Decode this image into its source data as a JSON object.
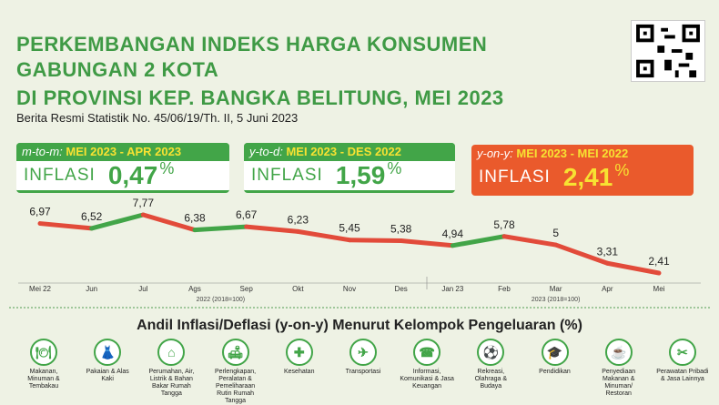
{
  "title_lines": [
    "PERKEMBANGAN INDEKS HARGA KONSUMEN",
    "GABUNGAN 2 KOTA",
    "DI PROVINSI KEP. BANGKA BELITUNG, MEI 2023"
  ],
  "subtitle": "Berita Resmi Statistik No. 45/06/19/Th. II, 5 Juni 2023",
  "boxes": [
    {
      "prefix": "m-to-m:",
      "period": "MEI 2023 - APR 2023",
      "label": "INFLASI",
      "value": "0,47",
      "unit": "%"
    },
    {
      "prefix": "y-to-d:",
      "period": "MEI 2023 - DES 2022",
      "label": "INFLASI",
      "value": "1,59",
      "unit": "%"
    },
    {
      "prefix": "y-on-y:",
      "period": "MEI 2023 - MEI 2022",
      "label": "INFLASI",
      "value": "2,41",
      "unit": "%"
    }
  ],
  "colors": {
    "green": "#42a548",
    "red": "#e24b3a",
    "accent_yellow": "#f7e232",
    "orange": "#ea5a2c"
  },
  "chart_data": {
    "type": "line",
    "categories": [
      "Mei 22",
      "Jun",
      "Jul",
      "Ags",
      "Sep",
      "Okt",
      "Nov",
      "Des",
      "Jan 23",
      "Feb",
      "Mar",
      "Apr",
      "Mei"
    ],
    "values": [
      6.97,
      6.52,
      7.77,
      6.38,
      6.67,
      6.23,
      5.45,
      5.38,
      4.94,
      5.78,
      5,
      3.31,
      2.41
    ],
    "value_labels": [
      "6,97",
      "6,52",
      "7,77",
      "6,38",
      "6,67",
      "6,23",
      "5,45",
      "5,38",
      "4,94",
      "5,78",
      "5",
      "3,31",
      "2,41"
    ],
    "base_labels": [
      "2022 (2018=100)",
      "2023 (2018=100)"
    ],
    "segment_colors_note": "green when rising, red when falling",
    "grid": false
  },
  "section_title": "Andil Inflasi/Deflasi (y-on-y) Menurut Kelompok Pengeluaran (%)",
  "categories": [
    {
      "icon": "food-icon",
      "glyph": "🍽",
      "label": "Makanan, Minuman & Tembakau"
    },
    {
      "icon": "clothing-icon",
      "glyph": "👗",
      "label": "Pakaian & Alas Kaki"
    },
    {
      "icon": "house-icon",
      "glyph": "⌂",
      "label": "Perumahan, Air, Listrik & Bahan Bakar Rumah Tangga"
    },
    {
      "icon": "furniture-icon",
      "glyph": "🛋",
      "label": "Perlengkapan, Peralatan & Pemeliharaan Rutin Rumah Tangga"
    },
    {
      "icon": "health-icon",
      "glyph": "✚",
      "label": "Kesehatan"
    },
    {
      "icon": "transport-icon",
      "glyph": "✈",
      "label": "Transportasi"
    },
    {
      "icon": "phone-icon",
      "glyph": "☎",
      "label": "Informasi, Komunikasi & Jasa Keuangan"
    },
    {
      "icon": "recreation-icon",
      "glyph": "⚽",
      "label": "Rekreasi, Olahraga & Budaya"
    },
    {
      "icon": "education-icon",
      "glyph": "🎓",
      "label": "Pendidikan"
    },
    {
      "icon": "restaurant-icon",
      "glyph": "☕",
      "label": "Penyediaan Makanan & Minuman/ Restoran"
    },
    {
      "icon": "personal-care-icon",
      "glyph": "✂",
      "label": "Perawatan Pribadi & Jasa Lainnya"
    }
  ]
}
